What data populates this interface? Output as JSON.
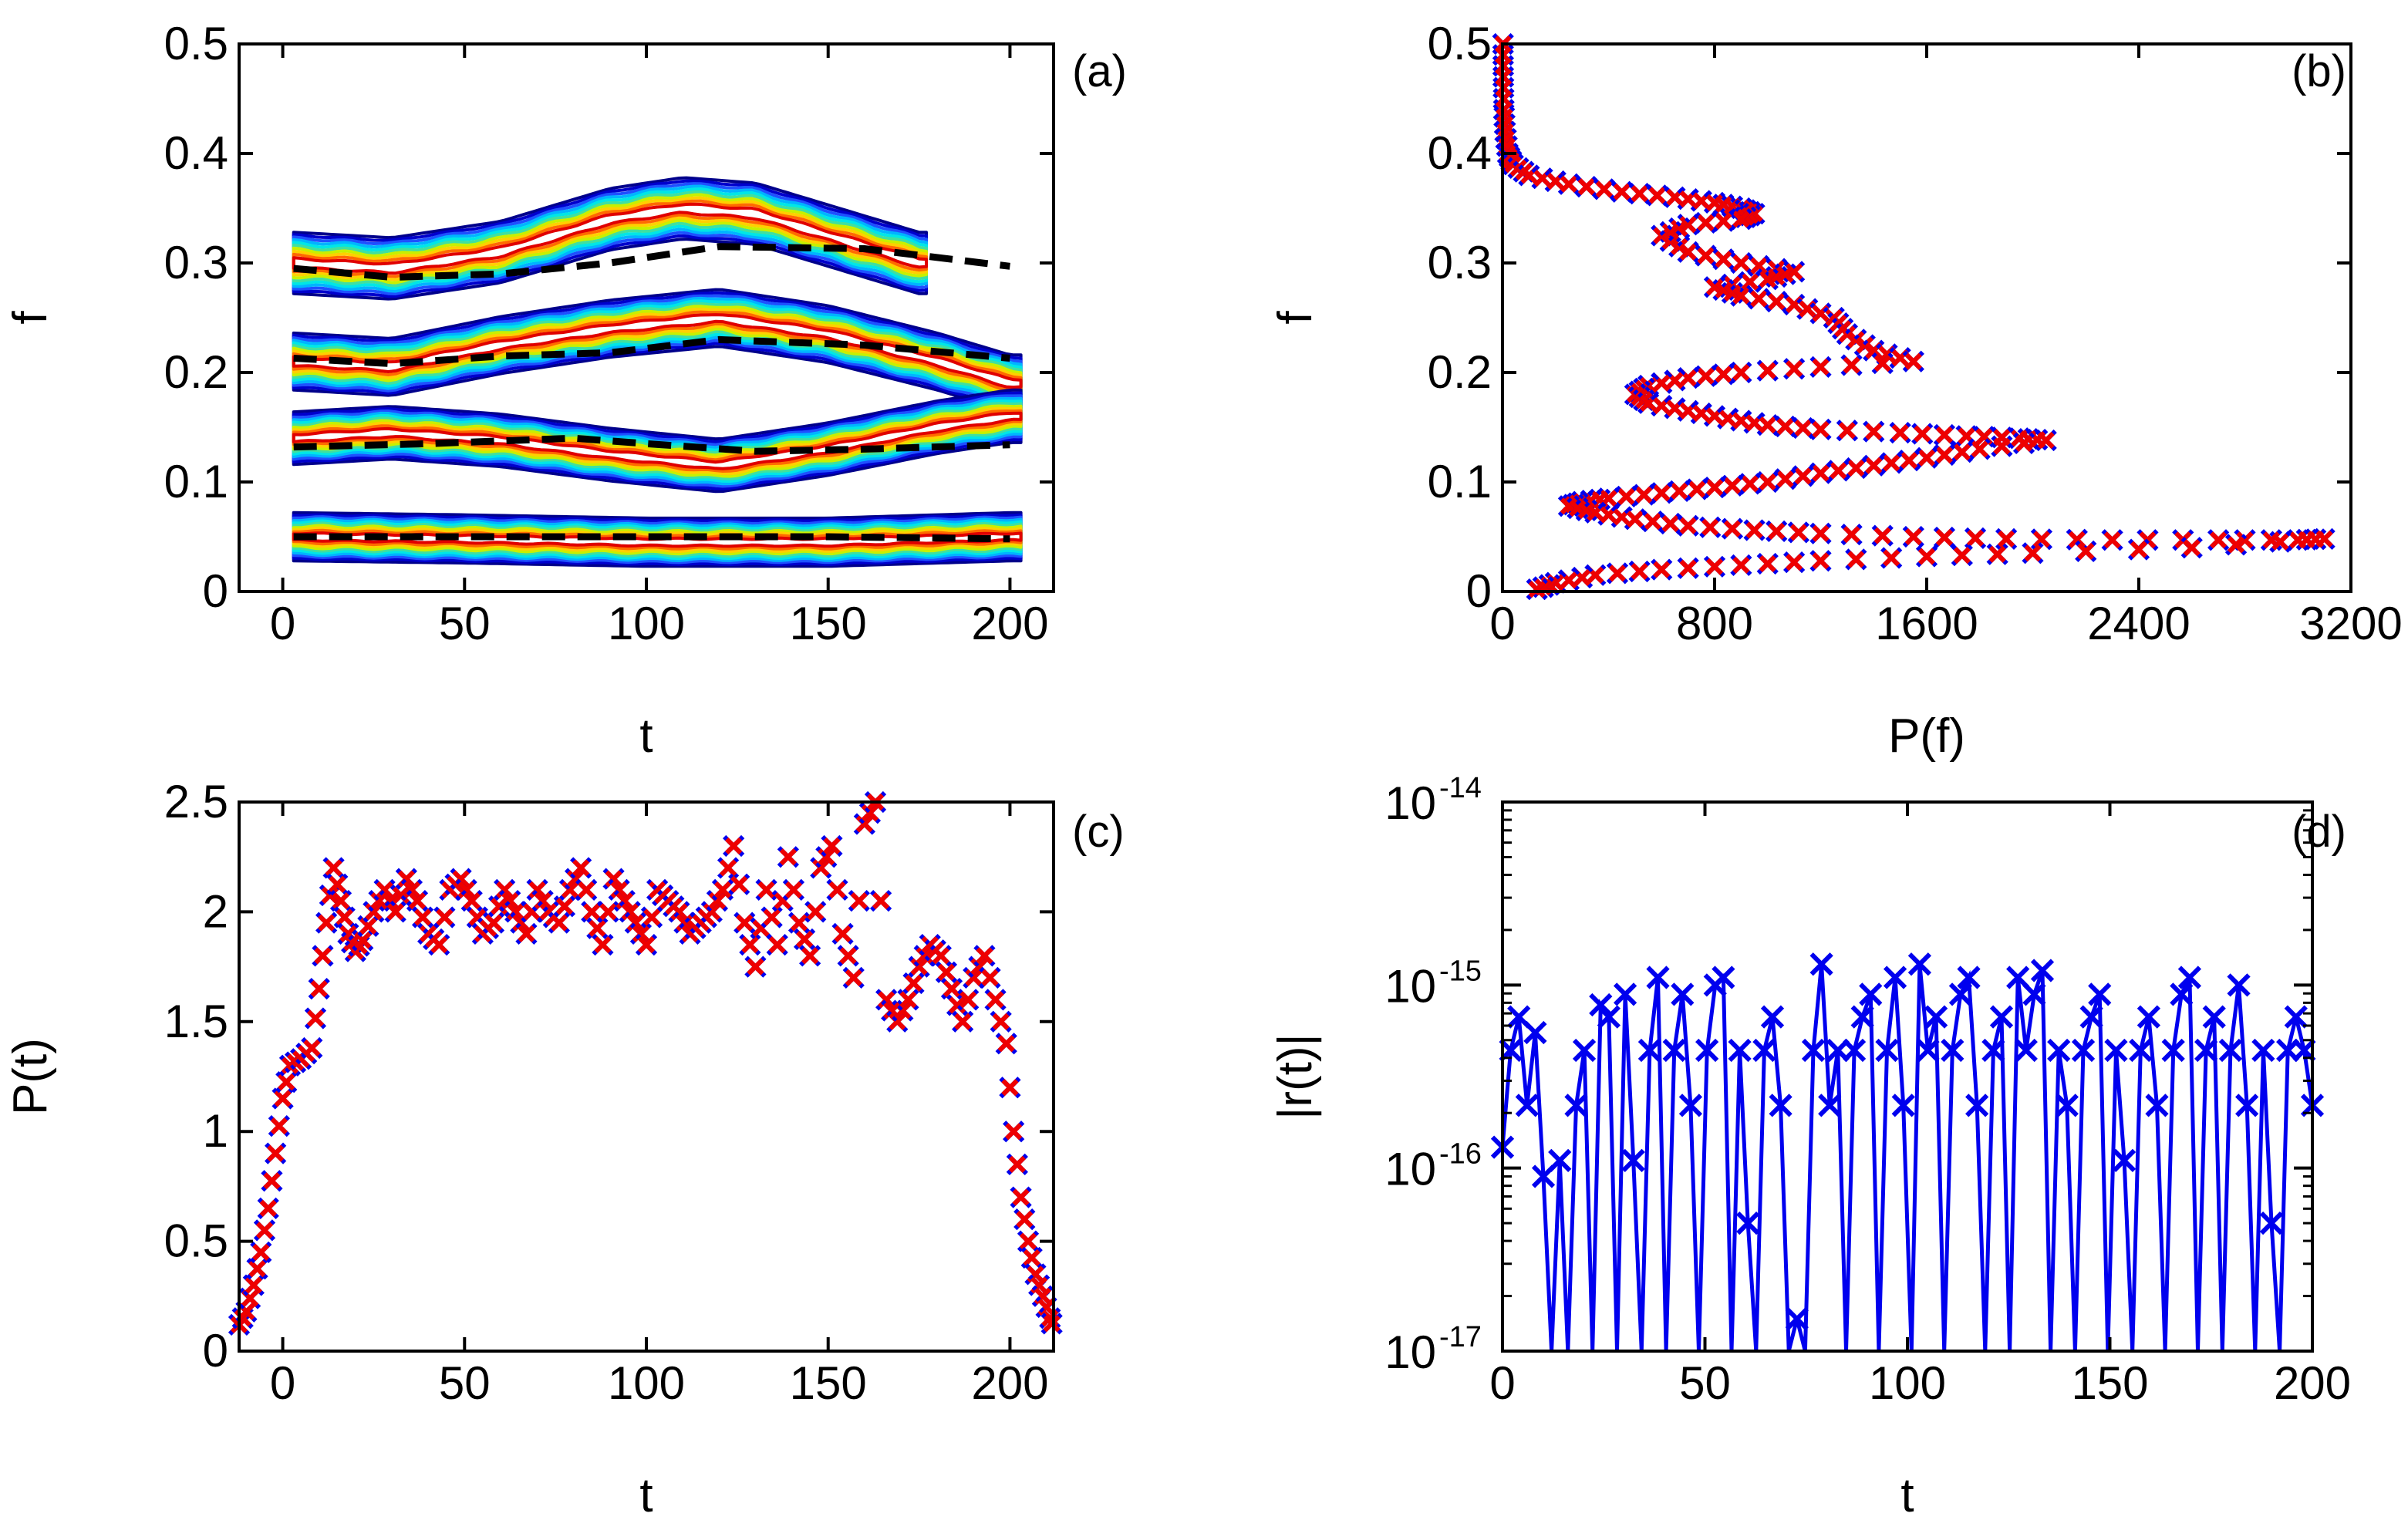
{
  "chart_data": [
    {
      "panel": "(a)",
      "type": "contour",
      "xlabel": "t",
      "ylabel": "f",
      "xlim": [
        -12,
        212
      ],
      "ylim": [
        0,
        0.5
      ],
      "xticks": [
        "0",
        "50",
        "100",
        "150",
        "200"
      ],
      "yticks": [
        "0",
        "0.1",
        "0.2",
        "0.3",
        "0.4",
        "0.5"
      ],
      "colormap": [
        "#00008b",
        "#0000cd",
        "#1e50ff",
        "#00b4ff",
        "#00e6e6",
        "#40e0a0",
        "#c8f000",
        "#ffd000",
        "#ff6a00",
        "#e00000"
      ],
      "bands": [
        {
          "name": "band-4",
          "center": [
            [
              3,
              0.3
            ],
            [
              30,
              0.295
            ],
            [
              60,
              0.31
            ],
            [
              90,
              0.34
            ],
            [
              110,
              0.35
            ],
            [
              130,
              0.345
            ],
            [
              150,
              0.325
            ],
            [
              175,
              0.3
            ]
          ],
          "halfwidth": 0.028
        },
        {
          "name": "band-3",
          "center": [
            [
              3,
              0.21
            ],
            [
              30,
              0.205
            ],
            [
              60,
              0.225
            ],
            [
              90,
              0.24
            ],
            [
              120,
              0.25
            ],
            [
              150,
              0.235
            ],
            [
              180,
              0.21
            ],
            [
              200,
              0.19
            ]
          ],
          "halfwidth": 0.026
        },
        {
          "name": "band-2",
          "center": [
            [
              3,
              0.14
            ],
            [
              30,
              0.145
            ],
            [
              60,
              0.138
            ],
            [
              90,
              0.125
            ],
            [
              120,
              0.115
            ],
            [
              150,
              0.13
            ],
            [
              180,
              0.15
            ],
            [
              200,
              0.16
            ]
          ],
          "halfwidth": 0.024
        },
        {
          "name": "band-1",
          "center": [
            [
              3,
              0.05
            ],
            [
              50,
              0.048
            ],
            [
              100,
              0.045
            ],
            [
              150,
              0.045
            ],
            [
              200,
              0.05
            ]
          ],
          "halfwidth": 0.022
        }
      ],
      "dashed_lines": [
        {
          "name": "ridge-upper",
          "points": [
            [
              3,
              0.295
            ],
            [
              30,
              0.287
            ],
            [
              60,
              0.29
            ],
            [
              90,
              0.3
            ],
            [
              120,
              0.315
            ],
            [
              160,
              0.313
            ],
            [
              200,
              0.297
            ]
          ]
        },
        {
          "name": "ridge-3",
          "points": [
            [
              3,
              0.213
            ],
            [
              30,
              0.208
            ],
            [
              60,
              0.215
            ],
            [
              90,
              0.218
            ],
            [
              120,
              0.23
            ],
            [
              160,
              0.225
            ],
            [
              200,
              0.213
            ]
          ]
        },
        {
          "name": "ridge-2",
          "points": [
            [
              3,
              0.132
            ],
            [
              40,
              0.135
            ],
            [
              80,
              0.14
            ],
            [
              100,
              0.135
            ],
            [
              130,
              0.128
            ],
            [
              160,
              0.13
            ],
            [
              200,
              0.134
            ]
          ]
        },
        {
          "name": "ridge-1",
          "points": [
            [
              3,
              0.05
            ],
            [
              50,
              0.05
            ],
            [
              100,
              0.05
            ],
            [
              150,
              0.05
            ],
            [
              200,
              0.048
            ]
          ]
        }
      ]
    },
    {
      "panel": "(b)",
      "type": "scatter",
      "xlabel": "P(f)",
      "ylabel": "f",
      "xlim": [
        0,
        3200
      ],
      "ylim": [
        0,
        0.5
      ],
      "xticks": [
        "0",
        "800",
        "1600",
        "2400",
        "3200"
      ],
      "yticks": [
        "0",
        "0.1",
        "0.2",
        "0.3",
        "0.4",
        "0.5"
      ],
      "series": [
        {
          "name": "blue-crosses",
          "color": "#0000ee"
        },
        {
          "name": "red-crosses",
          "color": "#ee0000"
        }
      ],
      "points": [
        [
          2,
          0.5
        ],
        [
          3,
          0.47
        ],
        [
          5,
          0.44
        ],
        [
          10,
          0.42
        ],
        [
          20,
          0.4
        ],
        [
          40,
          0.39
        ],
        [
          100,
          0.38
        ],
        [
          250,
          0.372
        ],
        [
          450,
          0.365
        ],
        [
          650,
          0.36
        ],
        [
          800,
          0.355
        ],
        [
          900,
          0.35
        ],
        [
          950,
          0.345
        ],
        [
          900,
          0.34
        ],
        [
          700,
          0.335
        ],
        [
          600,
          0.325
        ],
        [
          700,
          0.31
        ],
        [
          900,
          0.3
        ],
        [
          1100,
          0.292
        ],
        [
          1000,
          0.285
        ],
        [
          800,
          0.278
        ],
        [
          900,
          0.27
        ],
        [
          1100,
          0.262
        ],
        [
          1250,
          0.25
        ],
        [
          1300,
          0.235
        ],
        [
          1400,
          0.22
        ],
        [
          1550,
          0.21
        ],
        [
          1200,
          0.205
        ],
        [
          900,
          0.2
        ],
        [
          700,
          0.195
        ],
        [
          550,
          0.188
        ],
        [
          500,
          0.18
        ],
        [
          550,
          0.172
        ],
        [
          700,
          0.165
        ],
        [
          850,
          0.158
        ],
        [
          1000,
          0.152
        ],
        [
          1200,
          0.148
        ],
        [
          1500,
          0.145
        ],
        [
          1750,
          0.142
        ],
        [
          1950,
          0.14
        ],
        [
          2050,
          0.138
        ],
        [
          1800,
          0.13
        ],
        [
          1600,
          0.122
        ],
        [
          1400,
          0.115
        ],
        [
          1200,
          0.108
        ],
        [
          1000,
          0.1
        ],
        [
          800,
          0.095
        ],
        [
          600,
          0.09
        ],
        [
          400,
          0.085
        ],
        [
          300,
          0.082
        ],
        [
          250,
          0.078
        ],
        [
          350,
          0.072
        ],
        [
          500,
          0.066
        ],
        [
          700,
          0.06
        ],
        [
          950,
          0.056
        ],
        [
          1200,
          0.053
        ],
        [
          1550,
          0.05
        ],
        [
          1900,
          0.048
        ],
        [
          2300,
          0.047
        ],
        [
          2700,
          0.047
        ],
        [
          3000,
          0.047
        ],
        [
          3100,
          0.048
        ],
        [
          2600,
          0.04
        ],
        [
          2000,
          0.035
        ],
        [
          1600,
          0.032
        ],
        [
          1200,
          0.028
        ],
        [
          900,
          0.024
        ],
        [
          600,
          0.02
        ],
        [
          350,
          0.015
        ],
        [
          200,
          0.008
        ],
        [
          130,
          0.002
        ]
      ]
    },
    {
      "panel": "(c)",
      "type": "scatter",
      "xlabel": "t",
      "ylabel": "P(t)",
      "xlim": [
        -12,
        212
      ],
      "ylim": [
        0,
        2.5
      ],
      "xticks": [
        "0",
        "50",
        "100",
        "150",
        "200"
      ],
      "yticks": [
        "0",
        "0.5",
        "1",
        "1.5",
        "2",
        "2.5"
      ],
      "series": [
        {
          "name": "blue-crosses",
          "color": "#0000ee"
        },
        {
          "name": "red-crosses",
          "color": "#ee0000"
        }
      ],
      "points": [
        [
          -12,
          0.12
        ],
        [
          -10,
          0.18
        ],
        [
          -8,
          0.3
        ],
        [
          -6,
          0.45
        ],
        [
          -4,
          0.65
        ],
        [
          -2,
          0.9
        ],
        [
          0,
          1.15
        ],
        [
          2,
          1.3
        ],
        [
          5,
          1.33
        ],
        [
          8,
          1.38
        ],
        [
          10,
          1.65
        ],
        [
          12,
          1.95
        ],
        [
          14,
          2.2
        ],
        [
          16,
          2.05
        ],
        [
          18,
          1.9
        ],
        [
          20,
          1.82
        ],
        [
          22,
          1.87
        ],
        [
          25,
          2.0
        ],
        [
          28,
          2.1
        ],
        [
          31,
          2.0
        ],
        [
          34,
          2.15
        ],
        [
          37,
          2.05
        ],
        [
          40,
          1.9
        ],
        [
          43,
          1.85
        ],
        [
          46,
          2.1
        ],
        [
          49,
          2.15
        ],
        [
          52,
          2.05
        ],
        [
          55,
          1.9
        ],
        [
          58,
          1.95
        ],
        [
          61,
          2.1
        ],
        [
          64,
          2.0
        ],
        [
          67,
          1.9
        ],
        [
          70,
          2.1
        ],
        [
          73,
          2.0
        ],
        [
          76,
          1.95
        ],
        [
          79,
          2.1
        ],
        [
          82,
          2.2
        ],
        [
          85,
          2.0
        ],
        [
          88,
          1.85
        ],
        [
          91,
          2.15
        ],
        [
          94,
          2.05
        ],
        [
          97,
          1.95
        ],
        [
          100,
          1.85
        ],
        [
          103,
          2.1
        ],
        [
          106,
          2.05
        ],
        [
          109,
          2.0
        ],
        [
          112,
          1.9
        ],
        [
          115,
          1.95
        ],
        [
          118,
          2.0
        ],
        [
          121,
          2.1
        ],
        [
          124,
          2.3
        ],
        [
          127,
          1.95
        ],
        [
          130,
          1.75
        ],
        [
          133,
          2.1
        ],
        [
          136,
          1.85
        ],
        [
          139,
          2.25
        ],
        [
          142,
          1.95
        ],
        [
          145,
          1.8
        ],
        [
          148,
          2.2
        ],
        [
          151,
          2.3
        ],
        [
          154,
          1.9
        ],
        [
          157,
          1.7
        ],
        [
          160,
          2.4
        ],
        [
          163,
          2.5
        ],
        [
          166,
          1.6
        ],
        [
          169,
          1.5
        ],
        [
          172,
          1.6
        ],
        [
          175,
          1.75
        ],
        [
          178,
          1.85
        ],
        [
          181,
          1.8
        ],
        [
          184,
          1.65
        ],
        [
          187,
          1.5
        ],
        [
          190,
          1.7
        ],
        [
          193,
          1.8
        ],
        [
          196,
          1.6
        ],
        [
          199,
          1.4
        ],
        [
          201,
          1.0
        ],
        [
          203,
          0.7
        ],
        [
          205,
          0.5
        ],
        [
          207,
          0.35
        ],
        [
          209,
          0.25
        ],
        [
          211,
          0.15
        ],
        [
          212,
          0.1
        ]
      ]
    },
    {
      "panel": "(d)",
      "type": "line+scatter",
      "xlabel": "t",
      "ylabel": "|r(t)|",
      "xlim": [
        0,
        200
      ],
      "yscale": "log",
      "ylim": [
        1e-17,
        1e-14
      ],
      "xticks": [
        "0",
        "50",
        "100",
        "150",
        "200"
      ],
      "ytick_base": "10",
      "ytick_exponents": [
        "-17",
        "-16",
        "-15",
        "-14"
      ],
      "series": [
        {
          "name": "blue-line",
          "color": "#0000ee"
        }
      ],
      "values": [
        1.3e-16,
        4.4e-16,
        6.7e-16,
        2.2e-16,
        5.5e-16,
        9e-17,
        1e-17,
        1.1e-16,
        1e-17,
        2.2e-16,
        4.4e-16,
        1e-17,
        7.8e-16,
        6.7e-16,
        1e-17,
        8.9e-16,
        1.1e-16,
        1e-17,
        4.4e-16,
        1.1e-15,
        1e-17,
        4.4e-16,
        8.9e-16,
        2.2e-16,
        1e-17,
        4.4e-16,
        1e-15,
        1.1e-15,
        1e-17,
        4.4e-16,
        5e-17,
        1e-17,
        4.4e-16,
        6.7e-16,
        2.2e-16,
        1e-17,
        1.5e-17,
        1e-17,
        4.4e-16,
        1.3e-15,
        2.2e-16,
        4.4e-16,
        1e-17,
        4.4e-16,
        6.7e-16,
        8.9e-16,
        1e-17,
        4.4e-16,
        1.1e-15,
        2.2e-16,
        1e-17,
        1.3e-15,
        4.4e-16,
        6.7e-16,
        1e-17,
        4.4e-16,
        8.9e-16,
        1.1e-15,
        2.2e-16,
        1e-17,
        4.4e-16,
        6.7e-16,
        1e-17,
        1.1e-15,
        4.4e-16,
        8.9e-16,
        1.2e-15,
        1e-17,
        4.4e-16,
        2.2e-16,
        1e-17,
        4.4e-16,
        6.7e-16,
        8.9e-16,
        1e-17,
        4.4e-16,
        1.1e-16,
        1e-17,
        4.4e-16,
        6.7e-16,
        2.2e-16,
        1e-17,
        4.4e-16,
        8.9e-16,
        1.1e-15,
        1e-17,
        4.4e-16,
        6.7e-16,
        1e-17,
        4.4e-16,
        1e-15,
        2.2e-16,
        1e-17,
        4.4e-16,
        5e-17,
        1e-17,
        4.4e-16,
        6.7e-16,
        4.4e-16,
        2.2e-16
      ]
    }
  ]
}
